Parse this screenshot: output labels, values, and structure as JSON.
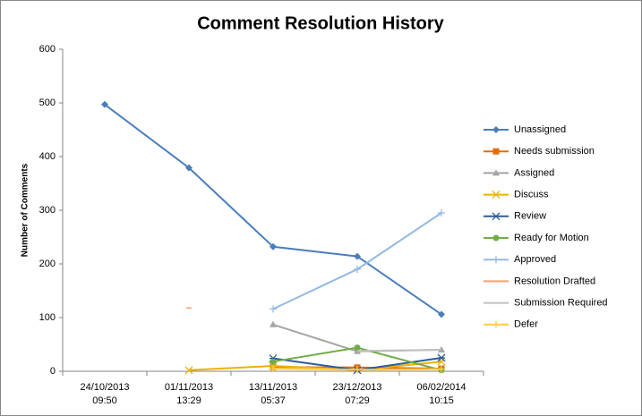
{
  "chart_data": {
    "type": "line",
    "title": "Comment Resolution History",
    "y_label": "Number of Comments",
    "categories": [
      "24/10/2013 09:50",
      "01/11/2013 13:29",
      "13/11/2013 05:37",
      "23/12/2013 07:29",
      "06/02/2014 10:15"
    ],
    "ylim": [
      0,
      600
    ],
    "yticks": [
      0,
      100,
      200,
      300,
      400,
      500,
      600
    ],
    "grid": false,
    "legend": "right",
    "series": [
      {
        "name": "Unassigned",
        "color": "#4a7ebb",
        "marker": "diamond",
        "values": [
          497,
          379,
          232,
          214,
          106
        ]
      },
      {
        "name": "Needs submission",
        "color": "#e46c0a",
        "marker": "square",
        "values": [
          null,
          null,
          8,
          7,
          5
        ]
      },
      {
        "name": "Assigned",
        "color": "#a5a5a5",
        "marker": "triangle",
        "values": [
          null,
          null,
          87,
          37,
          40
        ]
      },
      {
        "name": "Discuss",
        "color": "#f0b000",
        "marker": "x",
        "values": [
          null,
          2,
          10,
          2,
          18
        ]
      },
      {
        "name": "Review",
        "color": "#2c5c9a",
        "marker": "star",
        "values": [
          null,
          null,
          24,
          2,
          25
        ]
      },
      {
        "name": "Ready for Motion",
        "color": "#70ad47",
        "marker": "circle",
        "values": [
          null,
          null,
          18,
          44,
          2
        ]
      },
      {
        "name": "Approved",
        "color": "#95b8e3",
        "marker": "plus",
        "values": [
          null,
          null,
          116,
          190,
          295
        ]
      },
      {
        "name": "Resolution Drafted",
        "color": "#f4a070",
        "marker": "dash",
        "values": [
          null,
          118,
          null,
          null,
          null
        ]
      },
      {
        "name": "Submission Required",
        "color": "#c0c0c0",
        "marker": "none",
        "values": [
          null,
          null,
          null,
          38,
          40
        ]
      },
      {
        "name": "Defer",
        "color": "#ffcc44",
        "marker": "plus",
        "values": [
          null,
          null,
          5,
          3,
          4
        ]
      }
    ]
  }
}
